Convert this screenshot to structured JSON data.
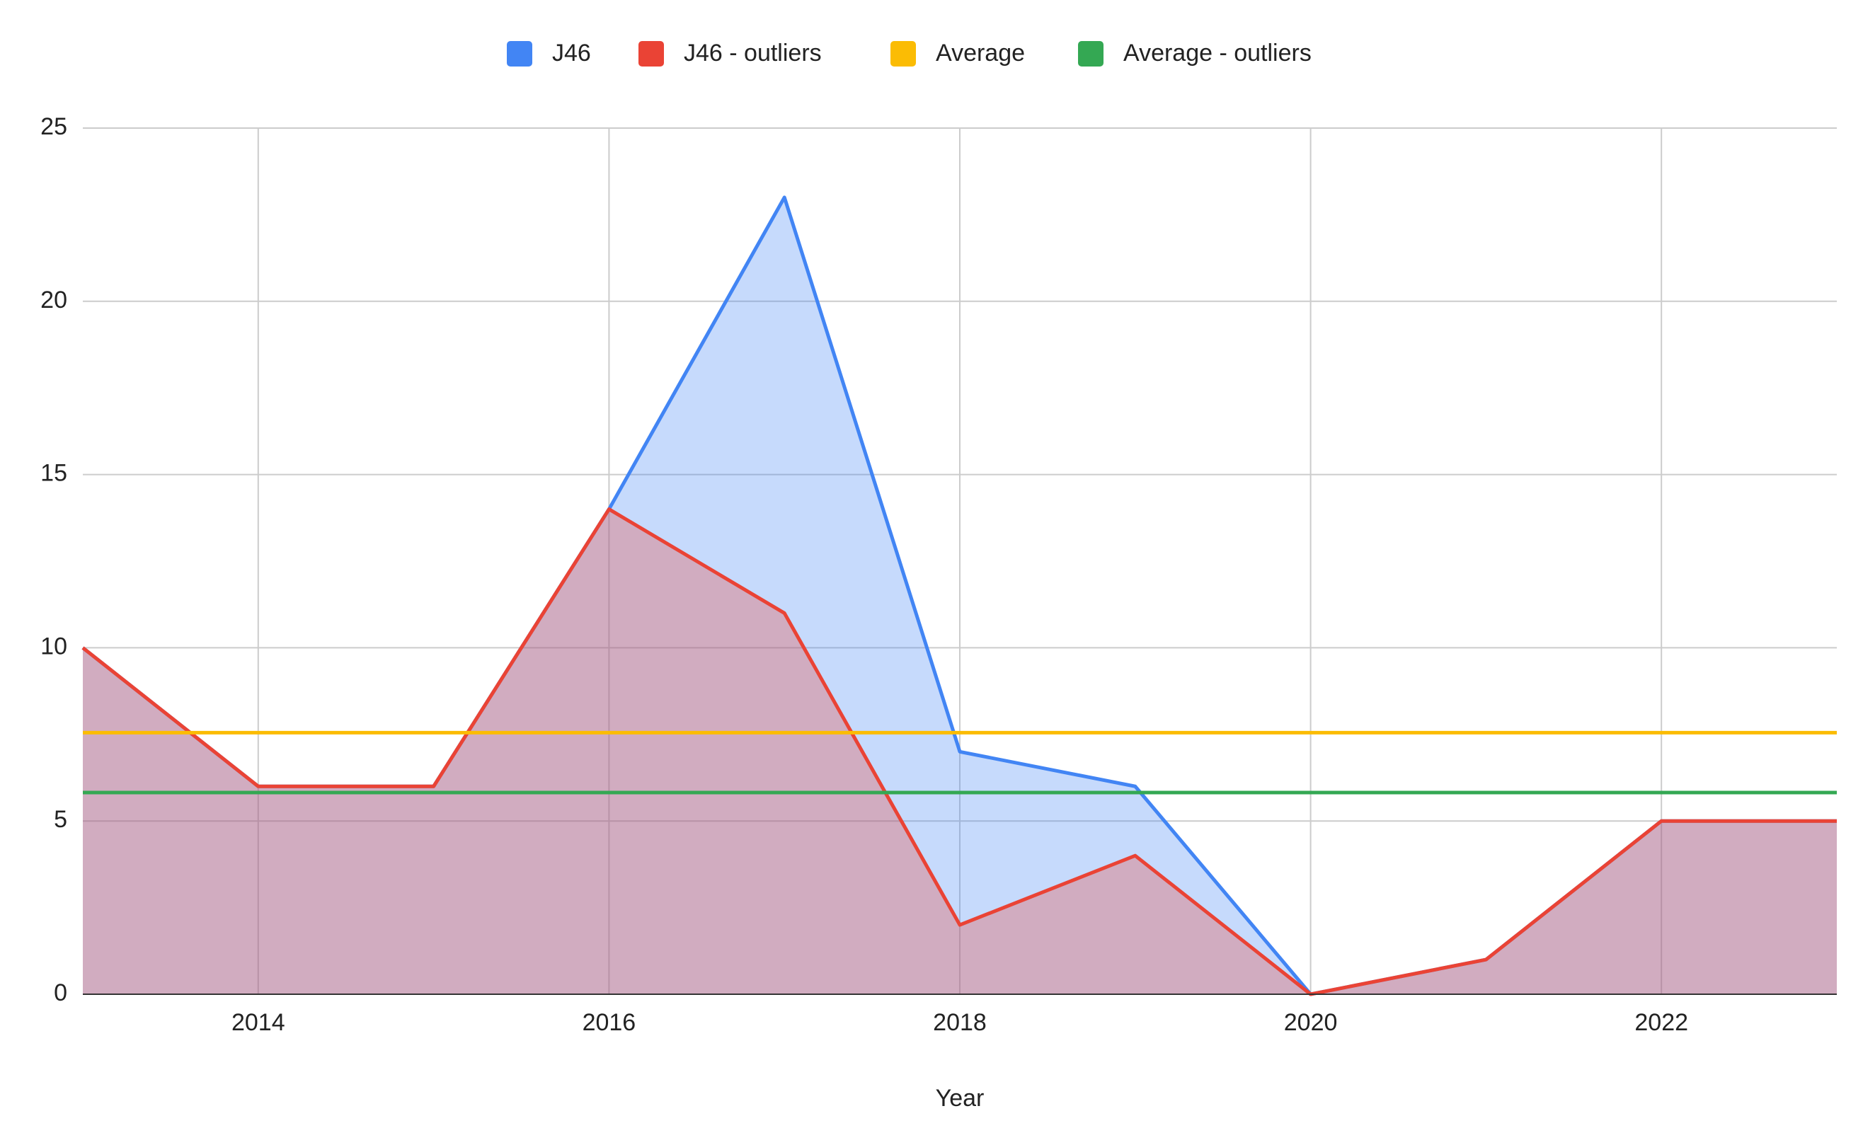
{
  "chart_data": {
    "type": "area",
    "x_label": "Year",
    "x": [
      2013,
      2014,
      2015,
      2016,
      2017,
      2018,
      2019,
      2020,
      2021,
      2022,
      2023
    ],
    "series": [
      {
        "name": "J46",
        "color": "#4285f4",
        "fill": true,
        "values": [
          10,
          6,
          6,
          14,
          23,
          7,
          6,
          0,
          1,
          5,
          5
        ]
      },
      {
        "name": "J46 - outliers",
        "color": "#ea4335",
        "fill": true,
        "values": [
          10,
          6,
          6,
          14,
          11,
          2,
          4,
          0,
          1,
          5,
          5
        ]
      },
      {
        "name": "Average",
        "color": "#fbbc04",
        "fill": false,
        "values": [
          7.55,
          7.55,
          7.55,
          7.55,
          7.55,
          7.55,
          7.55,
          7.55,
          7.55,
          7.55,
          7.55
        ]
      },
      {
        "name": "Average - outliers",
        "color": "#34a853",
        "fill": false,
        "values": [
          5.82,
          5.82,
          5.82,
          5.82,
          5.82,
          5.82,
          5.82,
          5.82,
          5.82,
          5.82,
          5.82
        ]
      }
    ],
    "xlim": [
      2013,
      2023
    ],
    "xticks": [
      2014,
      2016,
      2018,
      2020,
      2022
    ],
    "ylim": [
      0,
      25
    ],
    "yticks": [
      0,
      5,
      10,
      15,
      20,
      25
    ],
    "grid": true,
    "legend": "top"
  }
}
